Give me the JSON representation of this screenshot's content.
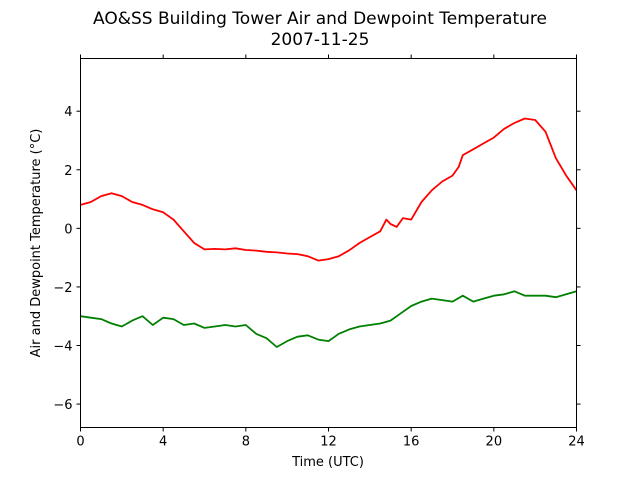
{
  "chart_data": {
    "type": "line",
    "title": "AO&SS Building Tower Air and Dewpoint Temperature",
    "subtitle": "2007-11-25",
    "xlabel": "Time (UTC)",
    "ylabel": "Air and Dewpoint Temperature (°C)",
    "xlim": [
      0,
      24
    ],
    "ylim": [
      -6.8,
      5.8
    ],
    "xticks": [
      0,
      4,
      8,
      12,
      16,
      20,
      24
    ],
    "yticks": [
      -6,
      -4,
      -2,
      0,
      2,
      4
    ],
    "grid": false,
    "legend": "none",
    "series": [
      {
        "color": "#ff0000",
        "x": [
          0,
          0.5,
          1.0,
          1.5,
          2.0,
          2.5,
          3.0,
          3.5,
          4.0,
          4.5,
          5.0,
          5.5,
          6.0,
          6.5,
          7.0,
          7.5,
          8.0,
          8.5,
          9.0,
          9.5,
          10.0,
          10.5,
          11.0,
          11.5,
          12.0,
          12.5,
          13.0,
          13.5,
          14.0,
          14.5,
          14.8,
          15.0,
          15.3,
          15.6,
          16.0,
          16.5,
          17.0,
          17.5,
          18.0,
          18.3,
          18.5,
          19.0,
          19.5,
          20.0,
          20.5,
          21.0,
          21.5,
          22.0,
          22.5,
          23.0,
          23.5,
          24.0
        ],
        "values": [
          0.8,
          0.9,
          1.1,
          1.2,
          1.1,
          0.9,
          0.8,
          0.65,
          0.55,
          0.3,
          -0.1,
          -0.5,
          -0.72,
          -0.7,
          -0.72,
          -0.68,
          -0.74,
          -0.76,
          -0.8,
          -0.82,
          -0.86,
          -0.88,
          -0.95,
          -1.1,
          -1.05,
          -0.95,
          -0.75,
          -0.5,
          -0.3,
          -0.1,
          0.3,
          0.15,
          0.05,
          0.35,
          0.3,
          0.9,
          1.3,
          1.6,
          1.8,
          2.1,
          2.5,
          2.7,
          2.9,
          3.1,
          3.4,
          3.6,
          3.75,
          3.7,
          3.3,
          2.4,
          1.8,
          1.3
        ]
      },
      {
        "color": "#008000",
        "x": [
          0,
          0.5,
          1.0,
          1.5,
          2.0,
          2.5,
          3.0,
          3.5,
          4.0,
          4.5,
          5.0,
          5.5,
          6.0,
          6.5,
          7.0,
          7.5,
          8.0,
          8.5,
          9.0,
          9.5,
          10.0,
          10.5,
          11.0,
          11.5,
          12.0,
          12.5,
          13.0,
          13.5,
          14.0,
          14.5,
          15.0,
          15.5,
          16.0,
          16.5,
          17.0,
          17.5,
          18.0,
          18.5,
          19.0,
          19.5,
          20.0,
          20.5,
          21.0,
          21.5,
          22.0,
          22.5,
          23.0,
          23.5,
          24.0
        ],
        "values": [
          -3.0,
          -3.05,
          -3.1,
          -3.25,
          -3.35,
          -3.15,
          -3.0,
          -3.3,
          -3.05,
          -3.1,
          -3.3,
          -3.25,
          -3.4,
          -3.35,
          -3.3,
          -3.35,
          -3.3,
          -3.6,
          -3.75,
          -4.05,
          -3.85,
          -3.7,
          -3.65,
          -3.8,
          -3.85,
          -3.6,
          -3.45,
          -3.35,
          -3.3,
          -3.25,
          -3.15,
          -2.9,
          -2.65,
          -2.5,
          -2.4,
          -2.45,
          -2.5,
          -2.3,
          -2.5,
          -2.4,
          -2.3,
          -2.25,
          -2.15,
          -2.3,
          -2.3,
          -2.3,
          -2.35,
          -2.25,
          -2.15
        ]
      }
    ]
  }
}
